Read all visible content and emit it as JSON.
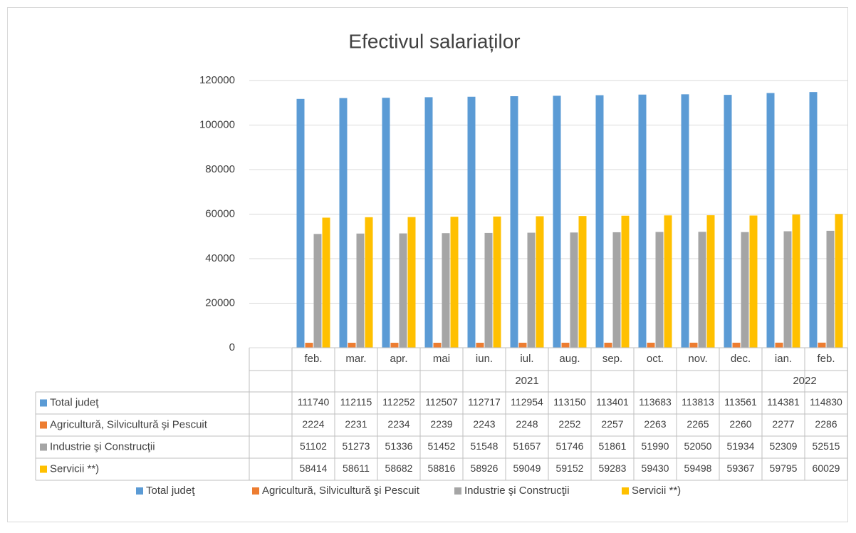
{
  "chart_data": {
    "type": "bar",
    "title": "Efectivul salariaților",
    "groups": [
      {
        "label": "2021",
        "categories": [
          "feb.",
          "mar.",
          "apr.",
          "mai",
          "iun.",
          "iul.",
          "aug.",
          "sep.",
          "oct.",
          "nov.",
          "dec."
        ]
      },
      {
        "label": "2022",
        "categories": [
          "ian.",
          "feb."
        ]
      }
    ],
    "series": [
      {
        "name": "Total judeţ",
        "color": "#5b9bd5",
        "values": [
          111740,
          112115,
          112252,
          112507,
          112717,
          112954,
          113150,
          113401,
          113683,
          113813,
          113561,
          114381,
          114830
        ]
      },
      {
        "name": "Agricultură, Silvicultură şi Pescuit",
        "color": "#ed7d31",
        "values": [
          2224,
          2231,
          2234,
          2239,
          2243,
          2248,
          2252,
          2257,
          2263,
          2265,
          2260,
          2277,
          2286
        ]
      },
      {
        "name": "Industrie şi Construcţii",
        "color": "#a5a5a5",
        "values": [
          51102,
          51273,
          51336,
          51452,
          51548,
          51657,
          51746,
          51861,
          51990,
          52050,
          51934,
          52309,
          52515
        ]
      },
      {
        "name": "Servicii **)",
        "color": "#ffc000",
        "values": [
          58414,
          58611,
          58682,
          58816,
          58926,
          59049,
          59152,
          59283,
          59430,
          59498,
          59367,
          59795,
          60029
        ]
      }
    ],
    "ylim": [
      0,
      120000
    ],
    "yticks": [
      0,
      20000,
      40000,
      60000,
      80000,
      100000,
      120000
    ],
    "grid": true,
    "legend": "bottom"
  }
}
